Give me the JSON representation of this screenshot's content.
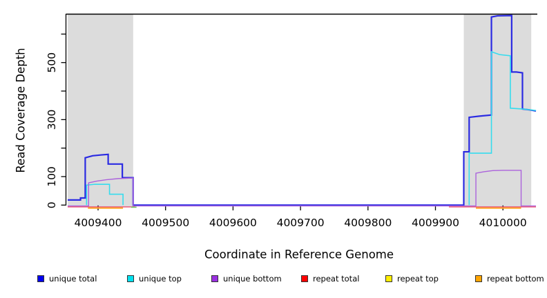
{
  "chart_data": {
    "type": "line",
    "step": true,
    "title": "",
    "xlabel": "Coordinate in Reference Genome",
    "ylabel": "Read Coverage Depth",
    "xlim": [
      4009355,
      4010050
    ],
    "ylim": [
      0,
      670
    ],
    "x_ticks": [
      4009400,
      4009500,
      4009600,
      4009700,
      4009800,
      4009900,
      4010000
    ],
    "y_ticks_all": [
      0,
      100,
      200,
      300,
      400,
      500,
      600
    ],
    "y_ticks_labeled": [
      0,
      100,
      300,
      500
    ],
    "grid": false,
    "legend_position": "bottom",
    "shade_color": "#dcdcdc",
    "shaded_regions": [
      {
        "x0": 4009355,
        "x1": 4009452
      },
      {
        "x0": 4009942,
        "x1": 4010042
      }
    ],
    "legend": [
      {
        "label": "unique total",
        "color": "#0000ee"
      },
      {
        "label": "unique top",
        "color": "#00e0ee"
      },
      {
        "label": "unique bottom",
        "color": "#9a30e0"
      },
      {
        "label": "repeat total",
        "color": "#ff0000"
      },
      {
        "label": "repeat top",
        "color": "#ffee00"
      },
      {
        "label": "repeat bottom",
        "color": "#ffa500"
      }
    ],
    "series": [
      {
        "name": "unique total",
        "color": "#2a2ae2",
        "width": 2.2,
        "segments": [
          [
            [
              4009355,
              18
            ],
            [
              4009374,
              18
            ],
            [
              4009374,
              25
            ],
            [
              4009381,
              25
            ],
            [
              4009381,
              166
            ],
            [
              4009392,
              173
            ],
            [
              4009405,
              176
            ],
            [
              4009415,
              178
            ],
            [
              4009415,
              144
            ],
            [
              4009436,
              144
            ],
            [
              4009436,
              96
            ],
            [
              4009452,
              96
            ],
            [
              4009452,
              0
            ],
            [
              4009942,
              0
            ],
            [
              4009942,
              187
            ],
            [
              4009950,
              187
            ],
            [
              4009950,
              308
            ],
            [
              4009965,
              312
            ],
            [
              4009983,
              316
            ],
            [
              4009983,
              660
            ],
            [
              4009992,
              664
            ],
            [
              4010013,
              665
            ],
            [
              4010013,
              467
            ],
            [
              4010020,
              467
            ],
            [
              4010029,
              464
            ],
            [
              4010029,
              337
            ],
            [
              4010040,
              334
            ],
            [
              4010049,
              330
            ]
          ]
        ]
      },
      {
        "name": "unique top",
        "color": "#35dcee",
        "width": 1.6,
        "segments": [
          [
            [
              4009383,
              0
            ],
            [
              4009383,
              70
            ],
            [
              4009395,
              73
            ],
            [
              4009417,
              73
            ],
            [
              4009417,
              38
            ],
            [
              4009437,
              38
            ],
            [
              4009437,
              0
            ]
          ],
          [
            [
              4009950,
              0
            ],
            [
              4009950,
              182
            ],
            [
              4009983,
              182
            ],
            [
              4009983,
              538
            ],
            [
              4009995,
              528
            ],
            [
              4010011,
              524
            ],
            [
              4010011,
              340
            ],
            [
              4010030,
              337
            ],
            [
              4010049,
              332
            ]
          ]
        ]
      },
      {
        "name": "unique bottom",
        "color": "#ab62dc",
        "width": 1.4,
        "segments": [
          [
            [
              4009355,
              0
            ],
            [
              4009386,
              0
            ],
            [
              4009386,
              78
            ],
            [
              4009398,
              84
            ],
            [
              4009412,
              89
            ],
            [
              4009430,
              93
            ],
            [
              4009452,
              95
            ],
            [
              4009452,
              0
            ],
            [
              4009960,
              0
            ],
            [
              4009960,
              112
            ],
            [
              4009972,
              117
            ],
            [
              4009985,
              121
            ],
            [
              4010000,
              122
            ],
            [
              4010027,
              122
            ],
            [
              4010027,
              0
            ],
            [
              4010049,
              0
            ]
          ]
        ]
      },
      {
        "name": "repeat total",
        "color": "#e84a71",
        "width": 1.4,
        "segments": [
          [
            [
              4009355,
              0
            ],
            [
              4009455,
              0
            ]
          ],
          [
            [
              4009920,
              0
            ],
            [
              4010049,
              0
            ]
          ]
        ]
      },
      {
        "name": "repeat top",
        "color": "#6fbf5e",
        "width": 1.6,
        "segments": [
          [
            [
              4009449,
              0
            ],
            [
              4009457,
              0
            ]
          ]
        ]
      },
      {
        "name": "repeat bottom",
        "color": "#ffa321",
        "width": 2.0,
        "segments": [
          [
            [
              4009385,
              0
            ],
            [
              4009437,
              0
            ]
          ],
          [
            [
              4009960,
              0
            ],
            [
              4010027,
              0
            ]
          ]
        ]
      }
    ]
  }
}
